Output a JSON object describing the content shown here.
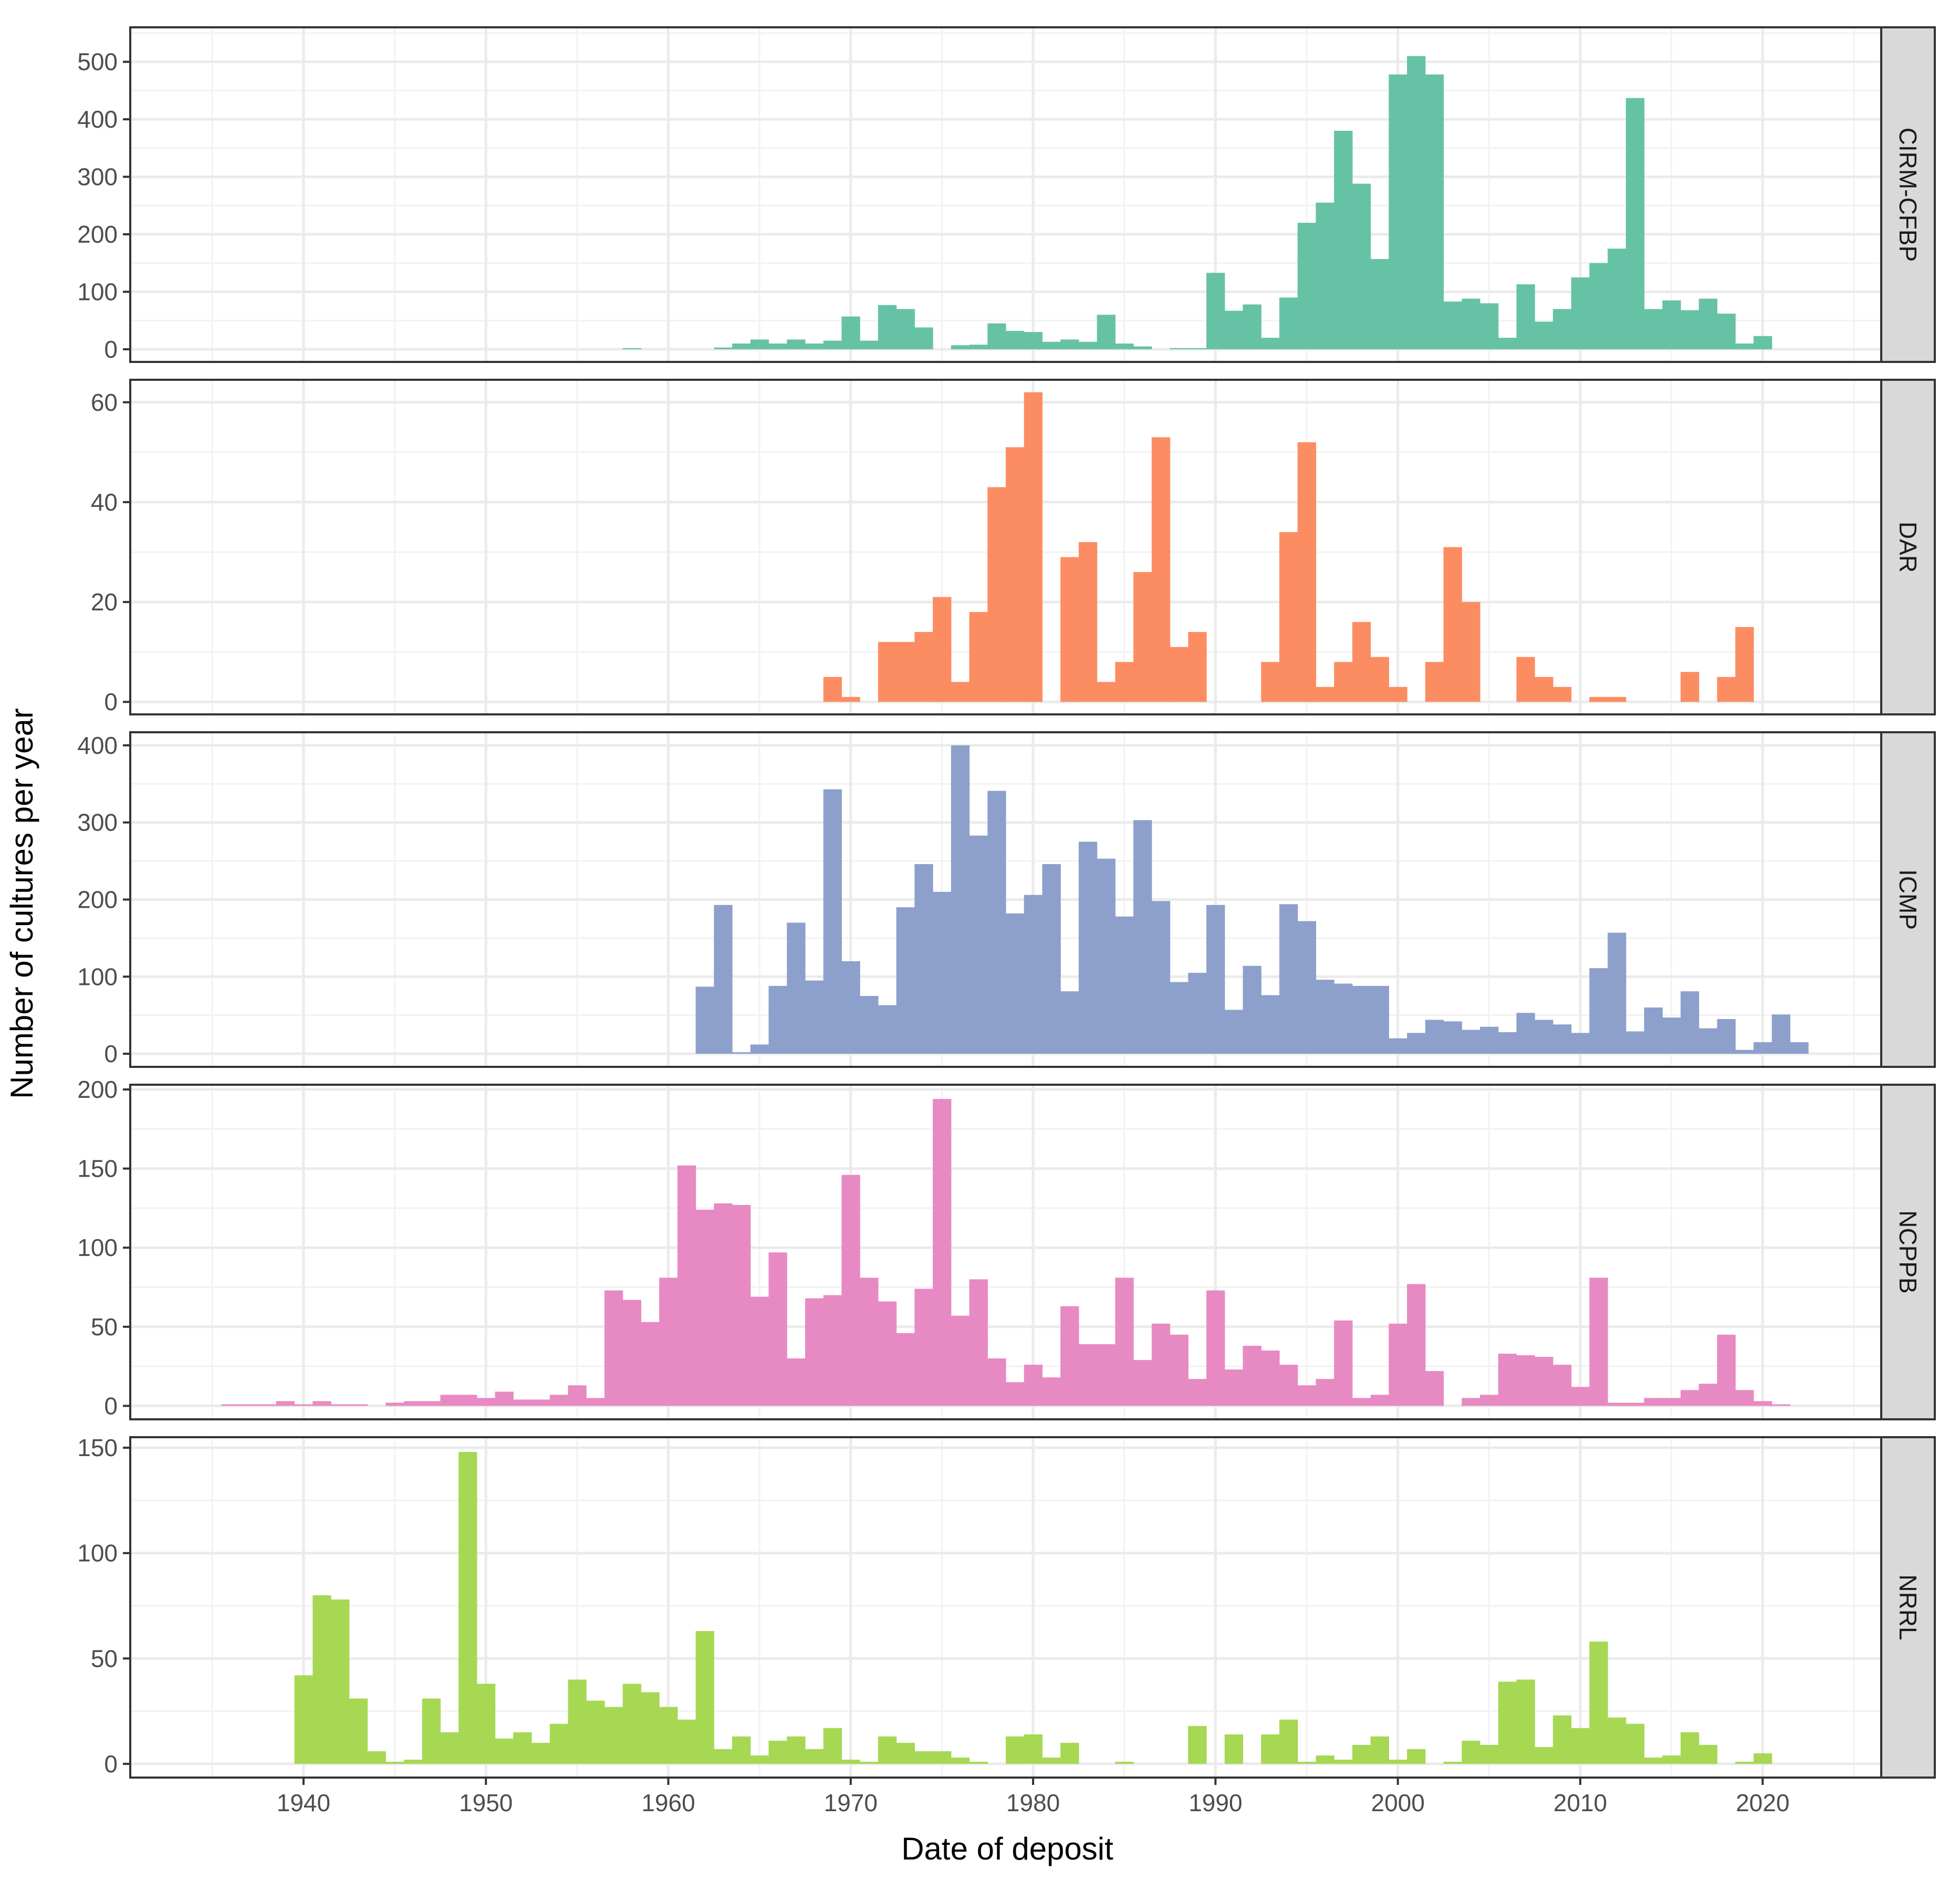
{
  "chart_data": {
    "type": "bar",
    "subtype": "faceted-histogram",
    "title": "",
    "xlabel": "Date of deposit",
    "ylabel": "Number of cultures per year",
    "xlim": [
      1930.5,
      2026.5
    ],
    "x_ticks": [
      1940,
      1950,
      1960,
      1970,
      1980,
      1990,
      2000,
      2010,
      2020
    ],
    "grid": true,
    "legend": "none",
    "facets": [
      {
        "name": "CIRM-CFBP",
        "color": "#66C2A5",
        "ylim": [
          -22,
          560
        ],
        "y_ticks": [
          0,
          100,
          200,
          300,
          400,
          500
        ],
        "bars": [
          [
            1958,
            2
          ],
          [
            1963,
            3
          ],
          [
            1964,
            10
          ],
          [
            1965,
            17
          ],
          [
            1966,
            10
          ],
          [
            1967,
            17
          ],
          [
            1968,
            10
          ],
          [
            1969,
            15
          ],
          [
            1970,
            57
          ],
          [
            1971,
            15
          ],
          [
            1972,
            77
          ],
          [
            1973,
            70
          ],
          [
            1974,
            38
          ],
          [
            1976,
            7
          ],
          [
            1977,
            8
          ],
          [
            1978,
            45
          ],
          [
            1979,
            32
          ],
          [
            1980,
            30
          ],
          [
            1981,
            13
          ],
          [
            1982,
            17
          ],
          [
            1983,
            13
          ],
          [
            1984,
            60
          ],
          [
            1985,
            10
          ],
          [
            1986,
            5
          ],
          [
            1988,
            2
          ],
          [
            1989,
            2
          ],
          [
            1990,
            133
          ],
          [
            1991,
            67
          ],
          [
            1992,
            78
          ],
          [
            1993,
            20
          ],
          [
            1994,
            90
          ],
          [
            1995,
            220
          ],
          [
            1996,
            255
          ],
          [
            1997,
            380
          ],
          [
            1998,
            288
          ],
          [
            1999,
            157
          ],
          [
            2000,
            478
          ],
          [
            2001,
            510
          ],
          [
            2002,
            478
          ],
          [
            2003,
            83
          ],
          [
            2004,
            88
          ],
          [
            2005,
            80
          ],
          [
            2006,
            20
          ],
          [
            2007,
            113
          ],
          [
            2008,
            48
          ],
          [
            2009,
            70
          ],
          [
            2010,
            125
          ],
          [
            2011,
            150
          ],
          [
            2012,
            175
          ],
          [
            2013,
            437
          ],
          [
            2014,
            70
          ],
          [
            2015,
            85
          ],
          [
            2016,
            68
          ],
          [
            2017,
            88
          ],
          [
            2018,
            62
          ],
          [
            2019,
            10
          ],
          [
            2020,
            23
          ]
        ]
      },
      {
        "name": "DAR",
        "color": "#FC8D62",
        "ylim": [
          -2.5,
          64.5
        ],
        "y_ticks": [
          0,
          20,
          40,
          60
        ],
        "bars": [
          [
            1969,
            5
          ],
          [
            1970,
            1
          ],
          [
            1972,
            12
          ],
          [
            1973,
            12
          ],
          [
            1974,
            14
          ],
          [
            1975,
            21
          ],
          [
            1976,
            4
          ],
          [
            1977,
            18
          ],
          [
            1978,
            43
          ],
          [
            1979,
            51
          ],
          [
            1980,
            62
          ],
          [
            1982,
            29
          ],
          [
            1983,
            32
          ],
          [
            1984,
            4
          ],
          [
            1985,
            8
          ],
          [
            1986,
            26
          ],
          [
            1987,
            53
          ],
          [
            1988,
            11
          ],
          [
            1989,
            14
          ],
          [
            1993,
            8
          ],
          [
            1994,
            34
          ],
          [
            1995,
            52
          ],
          [
            1996,
            3
          ],
          [
            1997,
            8
          ],
          [
            1998,
            16
          ],
          [
            1999,
            9
          ],
          [
            2000,
            3
          ],
          [
            2002,
            8
          ],
          [
            2003,
            31
          ],
          [
            2004,
            20
          ],
          [
            2007,
            9
          ],
          [
            2008,
            5
          ],
          [
            2009,
            3
          ],
          [
            2011,
            1
          ],
          [
            2012,
            1
          ],
          [
            2016,
            6
          ],
          [
            2018,
            5
          ],
          [
            2019,
            15
          ]
        ]
      },
      {
        "name": "ICMP",
        "color": "#8DA0CB",
        "ylim": [
          -17,
          417
        ],
        "y_ticks": [
          0,
          100,
          200,
          300,
          400
        ],
        "bars": [
          [
            1962,
            87
          ],
          [
            1963,
            193
          ],
          [
            1964,
            2
          ],
          [
            1965,
            12
          ],
          [
            1966,
            88
          ],
          [
            1967,
            170
          ],
          [
            1968,
            95
          ],
          [
            1969,
            343
          ],
          [
            1970,
            120
          ],
          [
            1971,
            75
          ],
          [
            1972,
            63
          ],
          [
            1973,
            190
          ],
          [
            1974,
            246
          ],
          [
            1975,
            210
          ],
          [
            1976,
            400
          ],
          [
            1977,
            283
          ],
          [
            1978,
            341
          ],
          [
            1979,
            182
          ],
          [
            1980,
            206
          ],
          [
            1981,
            246
          ],
          [
            1982,
            81
          ],
          [
            1983,
            275
          ],
          [
            1984,
            253
          ],
          [
            1985,
            178
          ],
          [
            1986,
            303
          ],
          [
            1987,
            198
          ],
          [
            1988,
            93
          ],
          [
            1989,
            105
          ],
          [
            1990,
            193
          ],
          [
            1991,
            57
          ],
          [
            1992,
            114
          ],
          [
            1993,
            76
          ],
          [
            1994,
            194
          ],
          [
            1995,
            172
          ],
          [
            1996,
            96
          ],
          [
            1997,
            91
          ],
          [
            1998,
            88
          ],
          [
            1999,
            88
          ],
          [
            2000,
            20
          ],
          [
            2001,
            27
          ],
          [
            2002,
            44
          ],
          [
            2003,
            42
          ],
          [
            2004,
            31
          ],
          [
            2005,
            35
          ],
          [
            2006,
            28
          ],
          [
            2007,
            53
          ],
          [
            2008,
            44
          ],
          [
            2009,
            38
          ],
          [
            2010,
            27
          ],
          [
            2011,
            111
          ],
          [
            2012,
            157
          ],
          [
            2013,
            29
          ],
          [
            2014,
            60
          ],
          [
            2015,
            47
          ],
          [
            2016,
            81
          ],
          [
            2017,
            33
          ],
          [
            2018,
            45
          ],
          [
            2019,
            5
          ],
          [
            2020,
            15
          ],
          [
            2021,
            51
          ],
          [
            2022,
            15
          ]
        ]
      },
      {
        "name": "NCPPB",
        "color": "#E78AC3",
        "ylim": [
          -8.5,
          203
        ],
        "y_ticks": [
          0,
          50,
          100,
          150,
          200
        ],
        "bars": [
          [
            1936,
            1
          ],
          [
            1937,
            1
          ],
          [
            1938,
            1
          ],
          [
            1939,
            3
          ],
          [
            1940,
            1
          ],
          [
            1941,
            3
          ],
          [
            1942,
            1
          ],
          [
            1943,
            1
          ],
          [
            1945,
            2
          ],
          [
            1946,
            3
          ],
          [
            1947,
            3
          ],
          [
            1948,
            7
          ],
          [
            1949,
            7
          ],
          [
            1950,
            5
          ],
          [
            1951,
            9
          ],
          [
            1952,
            4
          ],
          [
            1953,
            4
          ],
          [
            1954,
            7
          ],
          [
            1955,
            13
          ],
          [
            1956,
            5
          ],
          [
            1957,
            73
          ],
          [
            1958,
            67
          ],
          [
            1959,
            53
          ],
          [
            1960,
            81
          ],
          [
            1961,
            152
          ],
          [
            1962,
            124
          ],
          [
            1963,
            128
          ],
          [
            1964,
            127
          ],
          [
            1965,
            69
          ],
          [
            1966,
            97
          ],
          [
            1967,
            30
          ],
          [
            1968,
            68
          ],
          [
            1969,
            70
          ],
          [
            1970,
            146
          ],
          [
            1971,
            81
          ],
          [
            1972,
            66
          ],
          [
            1973,
            46
          ],
          [
            1974,
            74
          ],
          [
            1975,
            194
          ],
          [
            1976,
            57
          ],
          [
            1977,
            80
          ],
          [
            1978,
            30
          ],
          [
            1979,
            15
          ],
          [
            1980,
            26
          ],
          [
            1981,
            18
          ],
          [
            1982,
            63
          ],
          [
            1983,
            39
          ],
          [
            1984,
            39
          ],
          [
            1985,
            81
          ],
          [
            1986,
            29
          ],
          [
            1987,
            52
          ],
          [
            1988,
            45
          ],
          [
            1989,
            17
          ],
          [
            1990,
            73
          ],
          [
            1991,
            23
          ],
          [
            1992,
            38
          ],
          [
            1993,
            35
          ],
          [
            1994,
            26
          ],
          [
            1995,
            13
          ],
          [
            1996,
            17
          ],
          [
            1997,
            54
          ],
          [
            1998,
            5
          ],
          [
            1999,
            7
          ],
          [
            2000,
            52
          ],
          [
            2001,
            77
          ],
          [
            2002,
            22
          ],
          [
            2004,
            5
          ],
          [
            2005,
            7
          ],
          [
            2006,
            33
          ],
          [
            2007,
            32
          ],
          [
            2008,
            31
          ],
          [
            2009,
            26
          ],
          [
            2010,
            12
          ],
          [
            2011,
            81
          ],
          [
            2012,
            2
          ],
          [
            2013,
            2
          ],
          [
            2014,
            5
          ],
          [
            2015,
            5
          ],
          [
            2016,
            10
          ],
          [
            2017,
            14
          ],
          [
            2018,
            45
          ],
          [
            2019,
            10
          ],
          [
            2020,
            3
          ],
          [
            2021,
            1
          ]
        ]
      },
      {
        "name": "NRRL",
        "color": "#A6D854",
        "ylim": [
          -6.5,
          155
        ],
        "y_ticks": [
          0,
          50,
          100,
          150
        ],
        "bars": [
          [
            1940,
            42
          ],
          [
            1941,
            80
          ],
          [
            1942,
            78
          ],
          [
            1943,
            31
          ],
          [
            1944,
            6
          ],
          [
            1945,
            1
          ],
          [
            1946,
            2
          ],
          [
            1947,
            31
          ],
          [
            1948,
            15
          ],
          [
            1949,
            148
          ],
          [
            1950,
            38
          ],
          [
            1951,
            12
          ],
          [
            1952,
            15
          ],
          [
            1953,
            10
          ],
          [
            1954,
            19
          ],
          [
            1955,
            40
          ],
          [
            1956,
            30
          ],
          [
            1957,
            27
          ],
          [
            1958,
            38
          ],
          [
            1959,
            34
          ],
          [
            1960,
            27
          ],
          [
            1961,
            21
          ],
          [
            1962,
            63
          ],
          [
            1963,
            7
          ],
          [
            1964,
            13
          ],
          [
            1965,
            4
          ],
          [
            1966,
            11
          ],
          [
            1967,
            13
          ],
          [
            1968,
            7
          ],
          [
            1969,
            17
          ],
          [
            1970,
            2
          ],
          [
            1971,
            1
          ],
          [
            1972,
            13
          ],
          [
            1973,
            10
          ],
          [
            1974,
            6
          ],
          [
            1975,
            6
          ],
          [
            1976,
            3
          ],
          [
            1977,
            1
          ],
          [
            1979,
            13
          ],
          [
            1980,
            14
          ],
          [
            1981,
            3
          ],
          [
            1982,
            10
          ],
          [
            1985,
            1
          ],
          [
            1989,
            18
          ],
          [
            1991,
            14
          ],
          [
            1993,
            14
          ],
          [
            1994,
            21
          ],
          [
            1995,
            1
          ],
          [
            1996,
            4
          ],
          [
            1997,
            2
          ],
          [
            1998,
            9
          ],
          [
            1999,
            13
          ],
          [
            2000,
            2
          ],
          [
            2001,
            7
          ],
          [
            2003,
            1
          ],
          [
            2004,
            11
          ],
          [
            2005,
            9
          ],
          [
            2006,
            39
          ],
          [
            2007,
            40
          ],
          [
            2008,
            8
          ],
          [
            2009,
            23
          ],
          [
            2010,
            17
          ],
          [
            2011,
            58
          ],
          [
            2012,
            22
          ],
          [
            2013,
            19
          ],
          [
            2014,
            3
          ],
          [
            2015,
            4
          ],
          [
            2016,
            15
          ],
          [
            2017,
            9
          ],
          [
            2019,
            1
          ],
          [
            2020,
            5
          ]
        ]
      }
    ]
  }
}
